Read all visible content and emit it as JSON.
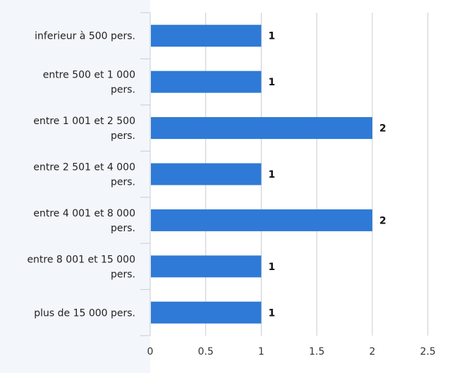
{
  "chart_data": {
    "type": "bar",
    "orientation": "horizontal",
    "categories": [
      "inferieur à 500 pers.",
      "entre 500 et 1 000 pers.",
      "entre 1 001 et 2 500 pers.",
      "entre 2 501 et 4 000 pers.",
      "entre 4 001 et 8 000 pers.",
      "entre 8 001 et 15 000 pers.",
      "plus de 15 000 pers."
    ],
    "category_label_lines": [
      [
        "inferieur à 500 pers."
      ],
      [
        "entre 500 et 1 000",
        "pers."
      ],
      [
        "entre 1 001 et 2 500",
        "pers."
      ],
      [
        "entre 2 501 et 4 000",
        "pers."
      ],
      [
        "entre 4 001 et 8 000",
        "pers."
      ],
      [
        "entre 8 001 et 15 000",
        "pers."
      ],
      [
        "plus de 15 000 pers."
      ]
    ],
    "values": [
      1,
      1,
      2,
      1,
      2,
      1,
      1
    ],
    "data_labels": [
      "1",
      "1",
      "2",
      "1",
      "2",
      "1",
      "1"
    ],
    "xlim": [
      0,
      2.5
    ],
    "xticks": [
      0,
      0.5,
      1,
      1.5,
      2,
      2.5
    ],
    "xtick_labels": [
      "0",
      "0.5",
      "1",
      "1.5",
      "2",
      "2.5"
    ],
    "grid": "vertical",
    "title": "",
    "xlabel": "",
    "ylabel": "",
    "colors": {
      "bar": "#2f7ad6",
      "grid": "#c8ccd2",
      "axis": "#c8ccd2",
      "background": "#f3f6fb",
      "plot_background": "#ffffff"
    }
  }
}
